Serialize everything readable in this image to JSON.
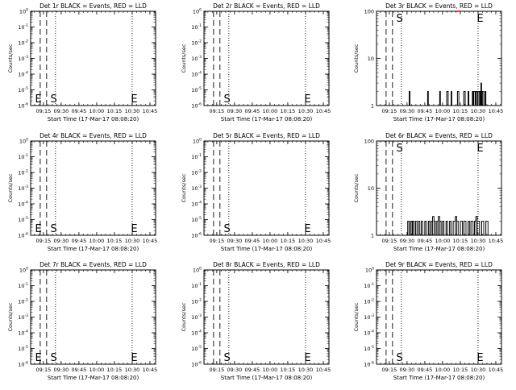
{
  "figure": {
    "background": "#ffffff",
    "foreground": "#000000",
    "lld_color": "#ff0000"
  },
  "chart_data": [
    {
      "type": "line",
      "panel": "1",
      "title": "Det 1r BLACK = Events, RED = LLD",
      "xlabel": "Start Time (17-Mar-17 08:08:20)",
      "ylabel": "Counts/sec",
      "x_ticks": [
        "09:15",
        "09:30",
        "09:45",
        "10:00",
        "10:15",
        "10:30",
        "10:45"
      ],
      "y_scale": "log",
      "y_ticks": [
        {
          "base": "10",
          "exp": "-6"
        },
        {
          "base": "10",
          "exp": "-5"
        },
        {
          "base": "10",
          "exp": "-4"
        },
        {
          "base": "10",
          "exp": "-3"
        },
        {
          "base": "10",
          "exp": "-2"
        },
        {
          "base": "10",
          "exp": "-1"
        },
        {
          "base": "10",
          "exp": "0"
        }
      ],
      "ylim": [
        1e-06,
        1
      ],
      "markers": [
        {
          "label": "E",
          "time": "09:08"
        },
        {
          "label": "S",
          "time": "09:21"
        },
        {
          "label": "E",
          "time": "10:29"
        }
      ],
      "series": [
        {
          "values": []
        }
      ]
    },
    {
      "type": "line",
      "panel": "2",
      "title": "Det 2r BLACK = Events, RED = LLD",
      "xlabel": "Start Time (17-Mar-17 08:08:20)",
      "ylabel": "Counts/sec",
      "x_ticks": [
        "09:15",
        "09:30",
        "09:45",
        "10:00",
        "10:15",
        "10:30",
        "10:45"
      ],
      "y_scale": "log",
      "y_ticks": [
        {
          "base": "10",
          "exp": "-6"
        },
        {
          "base": "10",
          "exp": "-5"
        },
        {
          "base": "10",
          "exp": "-4"
        },
        {
          "base": "10",
          "exp": "-3"
        },
        {
          "base": "10",
          "exp": "-2"
        },
        {
          "base": "10",
          "exp": "-1"
        },
        {
          "base": "10",
          "exp": "0"
        }
      ],
      "ylim": [
        1e-06,
        1
      ],
      "markers": [
        {
          "label": "S",
          "time": "09:21"
        },
        {
          "label": "E",
          "time": "10:29"
        }
      ],
      "series": [
        {
          "values": []
        }
      ]
    },
    {
      "type": "line",
      "panel": "3",
      "title": "Det 3r BLACK = Events, RED = LLD",
      "xlabel": "Start Time (17-Mar-17 08:08:20)",
      "ylabel": "Counts/sec",
      "x_ticks": [
        "09:15",
        "09:30",
        "09:45",
        "10:00",
        "10:15",
        "10:30",
        "10:45"
      ],
      "y_scale": "log",
      "y_ticks": [
        {
          "base": "",
          "exp": "",
          "text": "100"
        },
        {
          "base": "",
          "exp": "",
          "text": "10"
        },
        {
          "base": "",
          "exp": "",
          "text": "1"
        }
      ],
      "ylim": [
        1,
        100
      ],
      "markers": [
        {
          "label": "S",
          "time": "09:21"
        },
        {
          "label": "E",
          "time": "10:29"
        }
      ],
      "series": [
        {
          "values": [
            [
              9.52,
              1
            ],
            [
              9.53,
              2
            ],
            [
              9.54,
              1
            ],
            [
              9.78,
              1
            ],
            [
              9.79,
              2
            ],
            [
              9.8,
              1
            ],
            [
              9.95,
              1
            ],
            [
              9.96,
              2
            ],
            [
              9.97,
              1
            ],
            [
              10.05,
              1
            ],
            [
              10.06,
              2
            ],
            [
              10.08,
              1
            ],
            [
              10.12,
              2
            ],
            [
              10.13,
              1
            ],
            [
              10.2,
              1
            ],
            [
              10.21,
              2
            ],
            [
              10.23,
              1
            ],
            [
              10.3,
              2
            ],
            [
              10.32,
              1
            ],
            [
              10.36,
              2
            ],
            [
              10.37,
              1
            ],
            [
              10.42,
              2
            ],
            [
              10.43,
              1
            ],
            [
              10.44,
              2
            ],
            [
              10.46,
              1
            ],
            [
              10.47,
              2
            ],
            [
              10.49,
              1
            ],
            [
              10.5,
              2
            ],
            [
              10.52,
              2
            ],
            [
              10.53,
              1
            ],
            [
              10.54,
              3
            ],
            [
              10.55,
              1
            ],
            [
              10.56,
              2
            ],
            [
              10.58,
              1
            ],
            [
              10.6,
              2
            ],
            [
              10.61,
              1
            ]
          ]
        },
        {
          "name": "LLD",
          "values": [
            [
              10.2,
              100
            ],
            [
              10.26,
              100
            ]
          ]
        }
      ]
    },
    {
      "type": "line",
      "panel": "4",
      "title": "Det 4r BLACK = Events, RED = LLD",
      "xlabel": "Start Time (17-Mar-17 08:08:20)",
      "ylabel": "Counts/sec",
      "x_ticks": [
        "09:15",
        "09:30",
        "09:45",
        "10:00",
        "10:15",
        "10:30",
        "10:45"
      ],
      "y_scale": "log",
      "y_ticks": [
        {
          "base": "10",
          "exp": "-6"
        },
        {
          "base": "10",
          "exp": "-5"
        },
        {
          "base": "10",
          "exp": "-4"
        },
        {
          "base": "10",
          "exp": "-3"
        },
        {
          "base": "10",
          "exp": "-2"
        },
        {
          "base": "10",
          "exp": "-1"
        },
        {
          "base": "10",
          "exp": "0"
        }
      ],
      "ylim": [
        1e-06,
        1
      ],
      "markers": [
        {
          "label": "E",
          "time": "09:08"
        },
        {
          "label": "S",
          "time": "09:21"
        },
        {
          "label": "E",
          "time": "10:29"
        }
      ],
      "series": [
        {
          "values": []
        }
      ]
    },
    {
      "type": "line",
      "panel": "5",
      "title": "Det 5r BLACK = Events, RED = LLD",
      "xlabel": "Start Time (17-Mar-17 08:08:20)",
      "ylabel": "Counts/sec",
      "x_ticks": [
        "09:15",
        "09:30",
        "09:45",
        "10:00",
        "10:15",
        "10:30",
        "10:45"
      ],
      "y_scale": "log",
      "y_ticks": [
        {
          "base": "10",
          "exp": "-6"
        },
        {
          "base": "10",
          "exp": "-5"
        },
        {
          "base": "10",
          "exp": "-4"
        },
        {
          "base": "10",
          "exp": "-3"
        },
        {
          "base": "10",
          "exp": "-2"
        },
        {
          "base": "10",
          "exp": "-1"
        },
        {
          "base": "10",
          "exp": "0"
        }
      ],
      "ylim": [
        1e-06,
        1
      ],
      "markers": [
        {
          "label": "S",
          "time": "09:21"
        },
        {
          "label": "E",
          "time": "10:29"
        }
      ],
      "series": [
        {
          "values": []
        }
      ]
    },
    {
      "type": "line",
      "panel": "6",
      "title": "Det 6r BLACK = Events, RED = LLD",
      "xlabel": "Start Time (17-Mar-17 08:08:20)",
      "ylabel": "Counts/sec",
      "x_ticks": [
        "09:15",
        "09:30",
        "09:45",
        "10:00",
        "10:15",
        "10:30",
        "10:45"
      ],
      "y_scale": "log",
      "y_ticks": [
        {
          "base": "",
          "exp": "",
          "text": "100"
        },
        {
          "base": "",
          "exp": "",
          "text": "10"
        },
        {
          "base": "",
          "exp": "",
          "text": "1"
        }
      ],
      "ylim": [
        1,
        100
      ],
      "markers": [
        {
          "label": "S",
          "time": "09:21"
        },
        {
          "label": "E",
          "time": "10:29"
        }
      ],
      "series": [
        {
          "values": [
            [
              9.5,
              1
            ],
            [
              9.51,
              2
            ],
            [
              9.53,
              1
            ],
            [
              9.55,
              2
            ],
            [
              9.57,
              1
            ],
            [
              9.58,
              2
            ],
            [
              9.6,
              1
            ],
            [
              9.62,
              2
            ],
            [
              9.64,
              1
            ],
            [
              9.66,
              2
            ],
            [
              9.68,
              1
            ],
            [
              9.7,
              2
            ],
            [
              9.72,
              1
            ],
            [
              9.75,
              2
            ],
            [
              9.77,
              1
            ],
            [
              9.8,
              2
            ],
            [
              9.82,
              1
            ],
            [
              9.84,
              2
            ],
            [
              9.86,
              2.5
            ],
            [
              9.88,
              2
            ],
            [
              9.9,
              1
            ],
            [
              9.92,
              2
            ],
            [
              9.94,
              2.5
            ],
            [
              9.96,
              2
            ],
            [
              9.98,
              1
            ],
            [
              10.0,
              2
            ],
            [
              10.02,
              1
            ],
            [
              10.05,
              2
            ],
            [
              10.07,
              1
            ],
            [
              10.1,
              2
            ],
            [
              10.12,
              1
            ],
            [
              10.15,
              2
            ],
            [
              10.18,
              2.5
            ],
            [
              10.2,
              2
            ],
            [
              10.22,
              1
            ],
            [
              10.25,
              2
            ],
            [
              10.28,
              1
            ],
            [
              10.3,
              2
            ],
            [
              10.33,
              1
            ],
            [
              10.36,
              2
            ],
            [
              10.38,
              1
            ],
            [
              10.4,
              2
            ],
            [
              10.43,
              1
            ],
            [
              10.45,
              2
            ],
            [
              10.47,
              2.5
            ],
            [
              10.49,
              2
            ],
            [
              10.52,
              1
            ],
            [
              10.55,
              2
            ],
            [
              10.58,
              1
            ],
            [
              10.61,
              2
            ],
            [
              10.64,
              1
            ]
          ]
        }
      ]
    },
    {
      "type": "line",
      "panel": "7",
      "title": "Det 7r BLACK = Events, RED = LLD",
      "xlabel": "Start Time (17-Mar-17 08:08:20)",
      "ylabel": "Counts/sec",
      "x_ticks": [
        "09:15",
        "09:30",
        "09:45",
        "10:00",
        "10:15",
        "10:30",
        "10:45"
      ],
      "y_scale": "log",
      "y_ticks": [
        {
          "base": "10",
          "exp": "-6"
        },
        {
          "base": "10",
          "exp": "-5"
        },
        {
          "base": "10",
          "exp": "-4"
        },
        {
          "base": "10",
          "exp": "-3"
        },
        {
          "base": "10",
          "exp": "-2"
        },
        {
          "base": "10",
          "exp": "-1"
        },
        {
          "base": "10",
          "exp": "0"
        }
      ],
      "ylim": [
        1e-06,
        1
      ],
      "markers": [
        {
          "label": "E",
          "time": "09:08"
        },
        {
          "label": "S",
          "time": "09:21"
        },
        {
          "label": "E",
          "time": "10:29"
        }
      ],
      "series": [
        {
          "values": []
        }
      ]
    },
    {
      "type": "line",
      "panel": "8",
      "title": "Det 8r BLACK = Events, RED = LLD",
      "xlabel": "Start Time (17-Mar-17 08:08:20)",
      "ylabel": "Counts/sec",
      "x_ticks": [
        "09:15",
        "09:30",
        "09:45",
        "10:00",
        "10:15",
        "10:30",
        "10:45"
      ],
      "y_scale": "log",
      "y_ticks": [
        {
          "base": "10",
          "exp": "-6"
        },
        {
          "base": "10",
          "exp": "-5"
        },
        {
          "base": "10",
          "exp": "-4"
        },
        {
          "base": "10",
          "exp": "-3"
        },
        {
          "base": "10",
          "exp": "-2"
        },
        {
          "base": "10",
          "exp": "-1"
        },
        {
          "base": "10",
          "exp": "0"
        }
      ],
      "ylim": [
        1e-06,
        1
      ],
      "markers": [
        {
          "label": "S",
          "time": "09:21"
        },
        {
          "label": "E",
          "time": "10:29"
        }
      ],
      "series": [
        {
          "values": []
        }
      ]
    },
    {
      "type": "line",
      "panel": "9",
      "title": "Det 9r BLACK = Events, RED = LLD",
      "xlabel": "Start Time (17-Mar-17 08:08:20)",
      "ylabel": "Counts/sec",
      "x_ticks": [
        "09:15",
        "09:30",
        "09:45",
        "10:00",
        "10:15",
        "10:30",
        "10:45"
      ],
      "y_scale": "log",
      "y_ticks": [
        {
          "base": "10",
          "exp": "-6"
        },
        {
          "base": "10",
          "exp": "-5"
        },
        {
          "base": "10",
          "exp": "-4"
        },
        {
          "base": "10",
          "exp": "-3"
        },
        {
          "base": "10",
          "exp": "-2"
        },
        {
          "base": "10",
          "exp": "-1"
        },
        {
          "base": "10",
          "exp": "0"
        }
      ],
      "ylim": [
        1e-06,
        1
      ],
      "markers": [
        {
          "label": "S",
          "time": "09:21"
        },
        {
          "label": "E",
          "time": "10:29"
        }
      ],
      "series": [
        {
          "values": []
        }
      ]
    }
  ]
}
